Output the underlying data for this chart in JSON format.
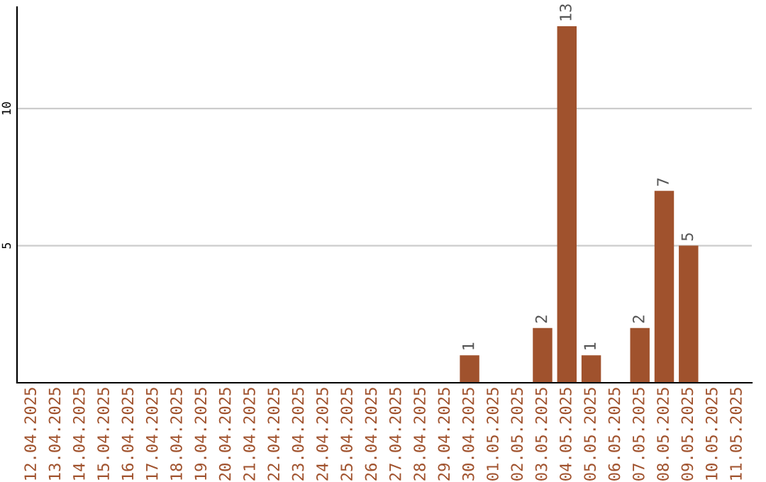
{
  "chart_data": {
    "type": "bar",
    "categories": [
      "12.04.2025",
      "13.04.2025",
      "14.04.2025",
      "15.04.2025",
      "16.04.2025",
      "17.04.2025",
      "18.04.2025",
      "19.04.2025",
      "20.04.2025",
      "21.04.2025",
      "22.04.2025",
      "23.04.2025",
      "24.04.2025",
      "25.04.2025",
      "26.04.2025",
      "27.04.2025",
      "28.04.2025",
      "29.04.2025",
      "30.04.2025",
      "01.05.2025",
      "02.05.2025",
      "03.05.2025",
      "04.05.2025",
      "05.05.2025",
      "06.05.2025",
      "07.05.2025",
      "08.05.2025",
      "09.05.2025",
      "10.05.2025",
      "11.05.2025"
    ],
    "values": [
      0,
      0,
      0,
      0,
      0,
      0,
      0,
      0,
      0,
      0,
      0,
      0,
      0,
      0,
      0,
      0,
      0,
      0,
      1,
      0,
      0,
      2,
      13,
      1,
      0,
      2,
      7,
      5,
      0,
      0
    ],
    "value_labels": [
      null,
      null,
      null,
      null,
      null,
      null,
      null,
      null,
      null,
      null,
      null,
      null,
      null,
      null,
      null,
      null,
      null,
      null,
      "1",
      null,
      null,
      "2",
      "13",
      "1",
      null,
      "2",
      "7",
      "5",
      null,
      null
    ],
    "color": "#a0522d",
    "ylim": [
      0,
      13.7
    ],
    "yticks": [
      5,
      10
    ],
    "grid": "y"
  }
}
